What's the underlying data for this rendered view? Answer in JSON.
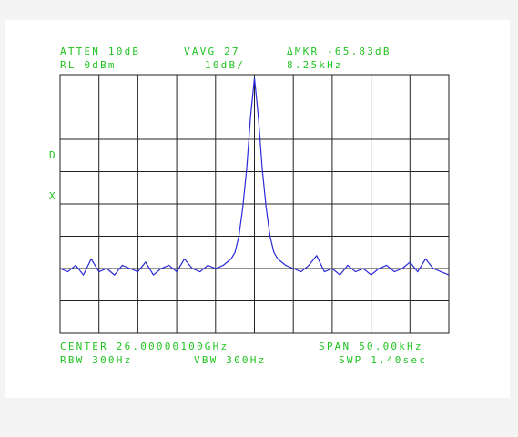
{
  "chart_data": {
    "type": "line",
    "annotations": [
      "ATTEN 10dB",
      "VAVG 27",
      "ΔMKR -65.83dB",
      "RL 0dBm",
      "10dB/",
      "8.25kHz",
      "D",
      "X",
      "CENTER 26.00000100GHz",
      "SPAN 50.00kHz",
      "RBW 300Hz",
      "VBW 300Hz",
      "SWP 1.40sec"
    ],
    "xlim": [
      -25,
      25
    ],
    "ylim": [
      -80,
      0
    ],
    "xticks": [
      -25,
      -20,
      -15,
      -10,
      -5,
      0,
      5,
      10,
      15,
      20,
      25
    ],
    "yticks": [
      -80,
      -70,
      -60,
      -50,
      -40,
      -30,
      -20,
      -10,
      0
    ],
    "grid": true,
    "series": [
      {
        "color": "#2a2ad8",
        "x": [
          -25,
          -24,
          -23,
          -22,
          -21,
          -20,
          -19,
          -18,
          -17,
          -16,
          -15,
          -14,
          -13,
          -12,
          -11,
          -10,
          -9,
          -8,
          -7,
          -6,
          -5,
          -4,
          -3.5,
          -3,
          -2.5,
          -2,
          -1.5,
          -1,
          -0.5,
          0,
          0.5,
          1,
          1.5,
          2,
          2.5,
          3,
          3.5,
          4,
          5,
          6,
          7,
          8,
          9,
          10,
          11,
          12,
          13,
          14,
          15,
          16,
          17,
          18,
          19,
          20,
          21,
          22,
          23,
          24,
          25
        ],
        "values": [
          -60,
          -61,
          -59,
          -62,
          -57,
          -61,
          -60,
          -62,
          -59,
          -60,
          -61,
          -58,
          -62,
          -60,
          -59,
          -61,
          -57,
          -60,
          -61,
          -59,
          -60,
          -59,
          -58,
          -57,
          -55,
          -50,
          -41,
          -29,
          -13,
          -1,
          -13,
          -29,
          -41,
          -50,
          -55,
          -57,
          -58,
          -59,
          -60,
          -61,
          -59,
          -56,
          -61,
          -60,
          -62,
          -59,
          -61,
          -60,
          -62,
          -60,
          -59,
          -61,
          -60,
          -58,
          -61,
          -57,
          -60,
          -61,
          -62
        ]
      }
    ]
  }
}
